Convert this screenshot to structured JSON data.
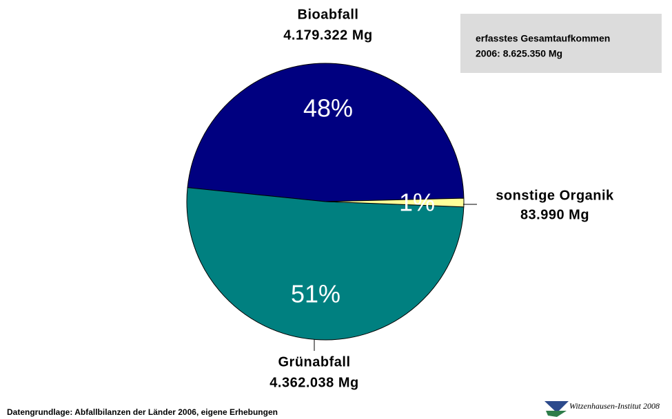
{
  "chart_data": {
    "type": "pie",
    "categories": [
      "Bioabfall",
      "Grünabfall",
      "sonstige Organik"
    ],
    "values": [
      48,
      51,
      1
    ],
    "value_labels": [
      "48%",
      "51%",
      "1%"
    ],
    "amount_labels": [
      "4.179.322 Mg",
      "4.362.038 Mg",
      "83.990 Mg"
    ],
    "colors": [
      "#000080",
      "#008080",
      "#ffff99"
    ],
    "annotation": [
      "erfasstes Gesamtaufkommen",
      "2006: 8.625.350 Mg"
    ],
    "source": "Datengrundlage: Abfallbilanzen der Länder 2006, eigene Erhebungen",
    "logo": "Witzenhausen-Institut 2008"
  }
}
